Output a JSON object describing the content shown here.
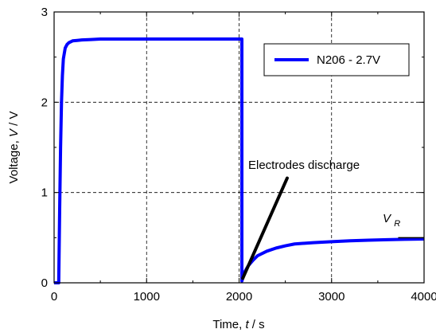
{
  "chart_data": {
    "type": "line",
    "title": "",
    "xlabel": {
      "prefix": "Time, ",
      "var": "t",
      "suffix": " / s"
    },
    "ylabel": {
      "prefix": "Voltage, ",
      "var": "V",
      "suffix": " / V"
    },
    "xlim": [
      0,
      4000
    ],
    "ylim": [
      0,
      3
    ],
    "xticks": [
      "0",
      "1000",
      "2000",
      "3000",
      "4000"
    ],
    "yticks": [
      "0",
      "1",
      "2",
      "3"
    ],
    "grid": true,
    "legend_position": "top-right",
    "series": [
      {
        "name": "N206 - 2.7V",
        "color": "#0000ff",
        "x": [
          0,
          50,
          60,
          70,
          80,
          90,
          100,
          120,
          140,
          160,
          180,
          200,
          250,
          300,
          400,
          500,
          700,
          1000,
          1500,
          2000,
          2030,
          2030,
          2060,
          2100,
          2150,
          2200,
          2300,
          2400,
          2500,
          2600,
          2800,
          3000,
          3200,
          3400,
          3600,
          3800,
          4000
        ],
        "y": [
          0,
          0,
          0.8,
          1.5,
          2.0,
          2.3,
          2.48,
          2.6,
          2.64,
          2.66,
          2.67,
          2.68,
          2.685,
          2.69,
          2.695,
          2.7,
          2.7,
          2.7,
          2.7,
          2.7,
          2.7,
          0.02,
          0.12,
          0.19,
          0.25,
          0.3,
          0.35,
          0.385,
          0.41,
          0.43,
          0.445,
          0.455,
          0.465,
          0.472,
          0.478,
          0.482,
          0.485
        ]
      }
    ],
    "annotations": [
      {
        "text": "Electrodes discharge",
        "arrow_from": [
          2520,
          1.16
        ],
        "arrow_to": [
          2040,
          0.05
        ]
      },
      {
        "text_main": "V",
        "text_sub": "R",
        "at": [
          3720,
          0.64
        ],
        "line_from": [
          3720,
          0.5
        ],
        "line_to": [
          4000,
          0.5
        ]
      }
    ]
  }
}
